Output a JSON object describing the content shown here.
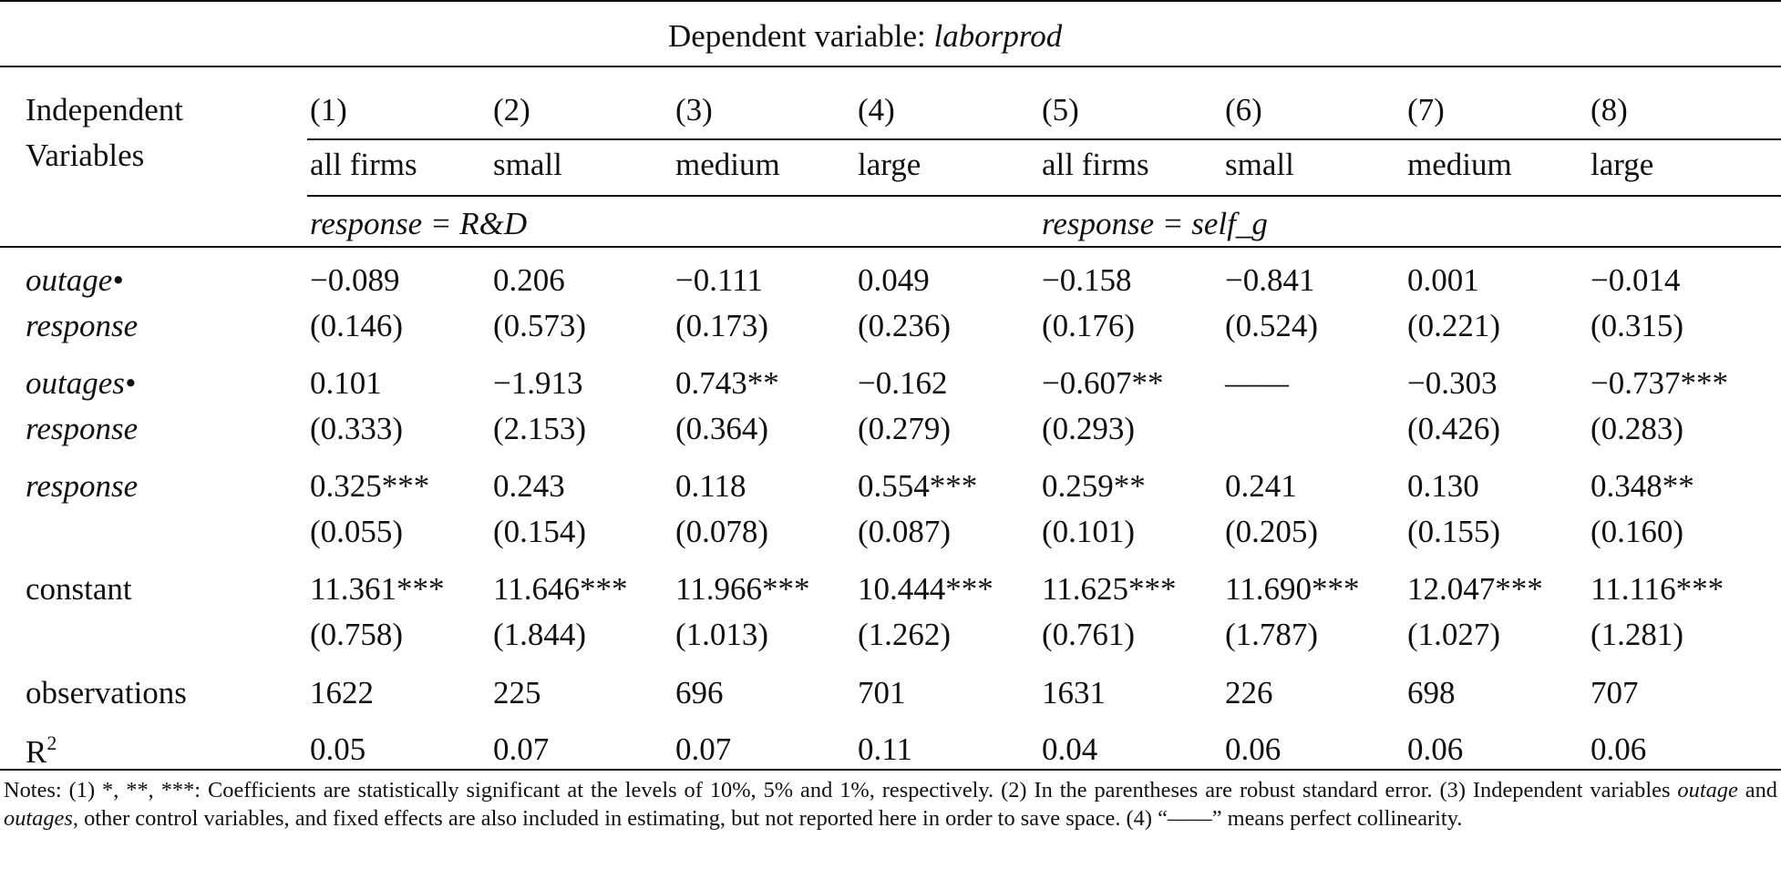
{
  "table": {
    "dependent_prefix": "Dependent variable: ",
    "dependent_var": "laborprod",
    "indep_label_1": "Independent",
    "indep_label_2": "Variables",
    "col_numbers": [
      "(1)",
      "(2)",
      "(3)",
      "(4)",
      "(5)",
      "(6)",
      "(7)",
      "(8)"
    ],
    "col_groups": [
      "all firms",
      "small",
      "medium",
      "large",
      "all firms",
      "small",
      "medium",
      "large"
    ],
    "response_rd": "response = R&D",
    "response_self": "response = self_g",
    "rows": [
      {
        "label_1": "outage•",
        "label_2": "response",
        "coef": [
          "−0.089",
          "0.206",
          "−0.111",
          "0.049",
          "−0.158",
          "−0.841",
          "0.001",
          "−0.014"
        ],
        "se": [
          "(0.146)",
          "(0.573)",
          "(0.173)",
          "(0.236)",
          "(0.176)",
          "(0.524)",
          "(0.221)",
          "(0.315)"
        ]
      },
      {
        "label_1": "outages•",
        "label_2": "response",
        "coef": [
          "0.101",
          "−1.913",
          "0.743**",
          "−0.162",
          "−0.607**",
          "——",
          "−0.303",
          "−0.737***"
        ],
        "se": [
          "(0.333)",
          "(2.153)",
          "(0.364)",
          "(0.279)",
          "(0.293)",
          "",
          "(0.426)",
          "(0.283)"
        ]
      },
      {
        "label_1": "response",
        "label_2": "",
        "coef": [
          "0.325***",
          "0.243",
          "0.118",
          "0.554***",
          "0.259**",
          "0.241",
          "0.130",
          "0.348**"
        ],
        "se": [
          "(0.055)",
          "(0.154)",
          "(0.078)",
          "(0.087)",
          "(0.101)",
          "(0.205)",
          "(0.155)",
          "(0.160)"
        ]
      },
      {
        "label_1": "constant",
        "label_2": "",
        "coef": [
          "11.361***",
          "11.646***",
          "11.966***",
          "10.444***",
          "11.625***",
          "11.690***",
          "12.047***",
          "11.116***"
        ],
        "se": [
          "(0.758)",
          "(1.844)",
          "(1.013)",
          "(1.262)",
          "(0.761)",
          "(1.787)",
          "(1.027)",
          "(1.281)"
        ]
      }
    ],
    "observations_label": "observations",
    "observations": [
      "1622",
      "225",
      "696",
      "701",
      "1631",
      "226",
      "698",
      "707"
    ],
    "r2_label": "R",
    "r2_sup": "2",
    "r2": [
      "0.05",
      "0.07",
      "0.07",
      "0.11",
      "0.04",
      "0.06",
      "0.06",
      "0.06"
    ]
  },
  "notes": {
    "part1": "Notes: (1) *, **, ***: Coefficients are statistically significant at the levels of 10%, 5% and 1%, respectively. (2) In the parentheses are robust standard error. (3) Independent variables ",
    "italic1": "outage",
    "part2": " and ",
    "italic2": "outages",
    "part3": ", other control variables, and fixed effects are also included in estimating, but not reported here in order to save space. (4) “——” means perfect collinearity."
  }
}
